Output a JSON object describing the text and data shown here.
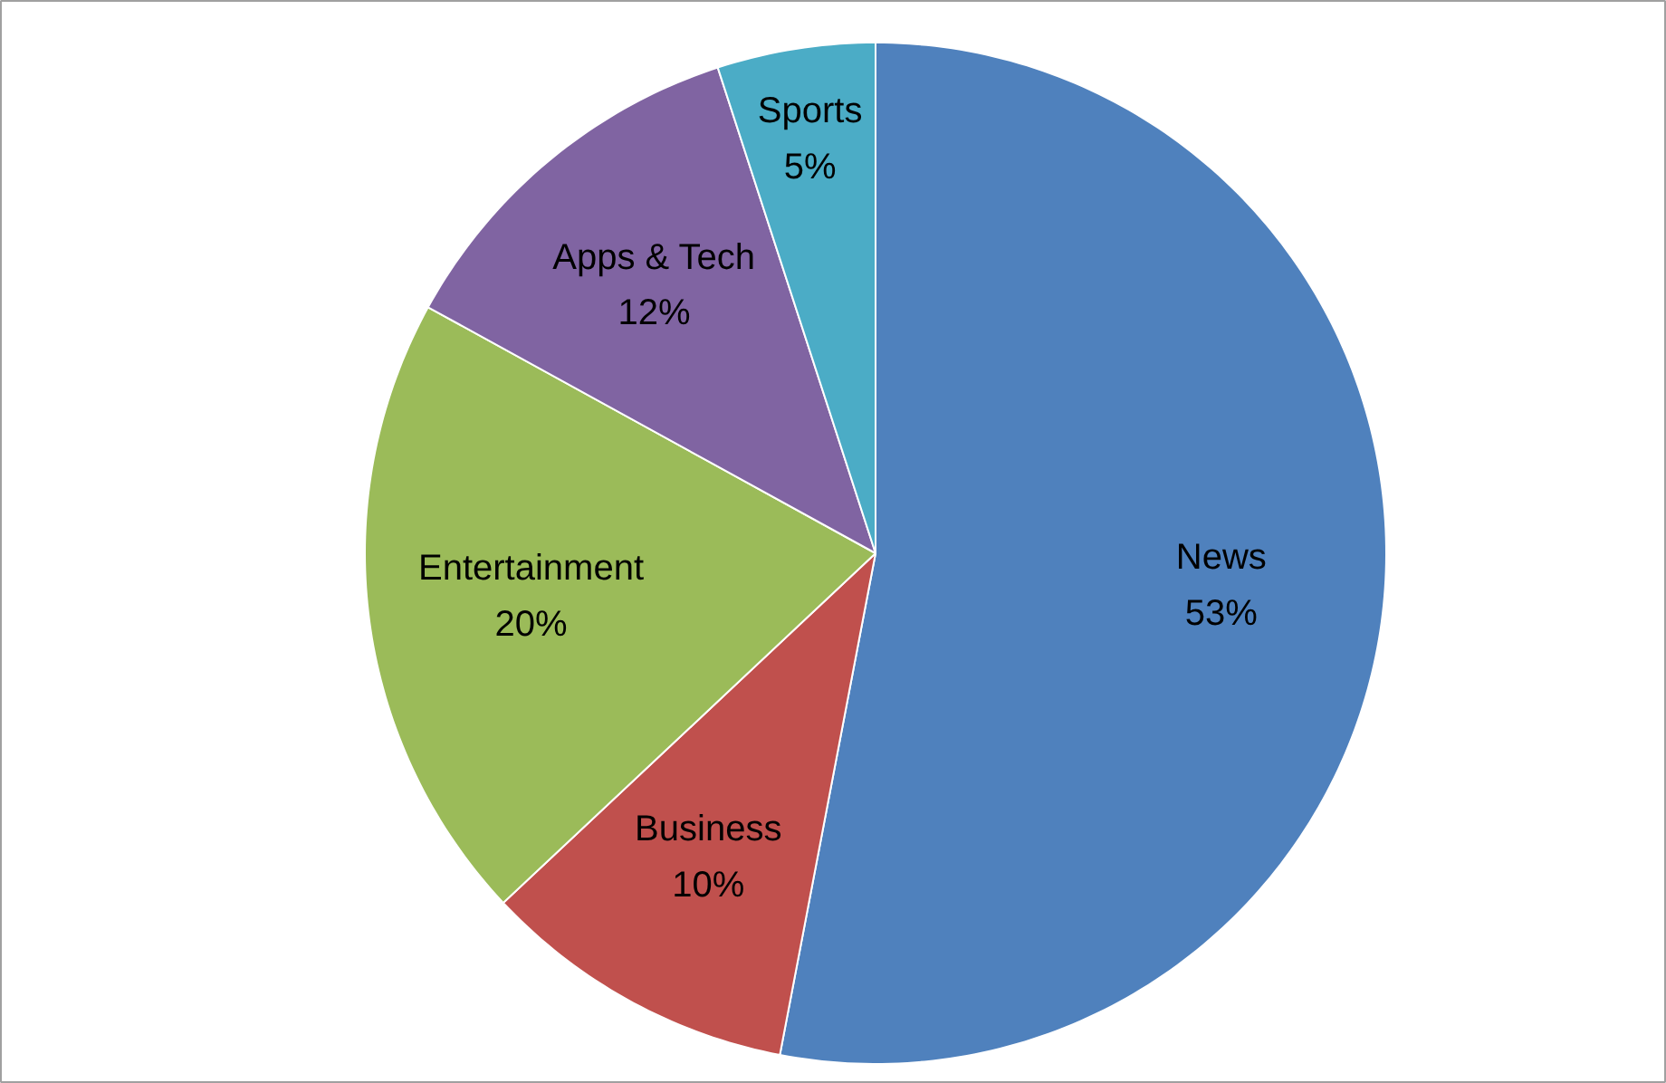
{
  "chart_data": {
    "type": "pie",
    "categories": [
      "News",
      "Business",
      "Entertainment",
      "Apps & Tech",
      "Sports"
    ],
    "values": [
      53,
      10,
      20,
      12,
      5
    ],
    "colors": [
      "#4f81bd",
      "#c0504d",
      "#9bbb59",
      "#8064a2",
      "#4bacc6"
    ],
    "value_labels": [
      "53%",
      "10%",
      "20%",
      "12%",
      "5%"
    ]
  }
}
